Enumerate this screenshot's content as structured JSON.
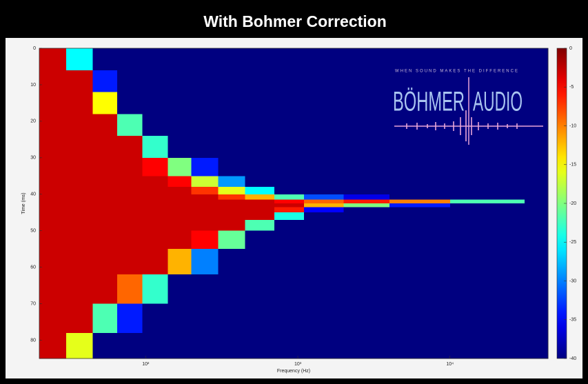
{
  "chart_data": {
    "type": "heatmap",
    "title": "With Bohmer Correction",
    "xlabel": "Frequency (Hz)",
    "ylabel": "Time (ms)",
    "xscale": "log",
    "xlim": [
      20,
      44100
    ],
    "ylim": [
      0,
      85
    ],
    "yreverse": true,
    "xticks": [
      {
        "value": 100,
        "label": "10²"
      },
      {
        "value": 1000,
        "label": "10³"
      },
      {
        "value": 10000,
        "label": "10⁴"
      }
    ],
    "yticks": [
      0,
      10,
      20,
      30,
      40,
      50,
      60,
      70,
      80
    ],
    "colormap": "jet",
    "clim": [
      -40,
      0
    ],
    "colorbar_ticks": [
      0,
      -5,
      -10,
      -15,
      -20,
      -25,
      -30,
      -35,
      -40
    ],
    "xbins": [
      20,
      30,
      45,
      65,
      95,
      140,
      200,
      300,
      450,
      700,
      1100,
      2000,
      4000,
      10000,
      31000,
      44100
    ],
    "ybins": [
      0,
      6,
      12,
      18,
      24,
      30,
      35,
      38,
      40,
      41.5,
      42.5,
      43.5,
      45,
      47,
      50,
      55,
      62,
      70,
      78,
      85
    ],
    "z": [
      [
        -3,
        -25,
        -40,
        -40,
        -40,
        -40,
        -40,
        -40,
        -40,
        -40,
        -40,
        -40,
        -40,
        -40,
        -40
      ],
      [
        -3,
        -3,
        -34,
        -40,
        -40,
        -40,
        -40,
        -40,
        -40,
        -40,
        -40,
        -40,
        -40,
        -40,
        -40
      ],
      [
        -3,
        -3,
        -15,
        -40,
        -40,
        -40,
        -40,
        -40,
        -40,
        -40,
        -40,
        -40,
        -40,
        -40,
        -40
      ],
      [
        -3,
        -3,
        -3,
        -22,
        -40,
        -40,
        -40,
        -40,
        -40,
        -40,
        -40,
        -40,
        -40,
        -40,
        -40
      ],
      [
        -3,
        -3,
        -3,
        -3,
        -23,
        -40,
        -40,
        -40,
        -40,
        -40,
        -40,
        -40,
        -40,
        -40,
        -40
      ],
      [
        -3,
        -3,
        -3,
        -3,
        -5,
        -20,
        -34,
        -40,
        -40,
        -40,
        -40,
        -40,
        -40,
        -40,
        -40
      ],
      [
        -3,
        -3,
        -3,
        -3,
        -3,
        -5,
        -17,
        -29,
        -40,
        -40,
        -40,
        -40,
        -40,
        -40,
        -40
      ],
      [
        -3,
        -3,
        -3,
        -3,
        -3,
        -3,
        -7,
        -16,
        -25,
        -40,
        -40,
        -40,
        -40,
        -40,
        -40
      ],
      [
        -3,
        -3,
        -3,
        -3,
        -3,
        -3,
        -3,
        -7,
        -12,
        -22,
        -32,
        -36,
        -40,
        -40,
        -40
      ],
      [
        -3,
        -3,
        -3,
        -3,
        -3,
        -3,
        -3,
        -3,
        -3,
        -5,
        -9,
        -6,
        -10,
        -22,
        -40
      ],
      [
        -3,
        -3,
        -3,
        -3,
        -3,
        -3,
        -3,
        -3,
        -3,
        -3,
        -12,
        -20,
        -34,
        -40,
        -40
      ],
      [
        -3,
        -3,
        -3,
        -3,
        -3,
        -3,
        -3,
        -3,
        -3,
        -6,
        -35,
        -40,
        -40,
        -40,
        -40
      ],
      [
        -3,
        -3,
        -3,
        -3,
        -3,
        -3,
        -3,
        -3,
        -3,
        -24,
        -40,
        -40,
        -40,
        -40,
        -40
      ],
      [
        -3,
        -3,
        -3,
        -3,
        -3,
        -3,
        -3,
        -3,
        -22,
        -40,
        -40,
        -40,
        -40,
        -40,
        -40
      ],
      [
        -3,
        -3,
        -3,
        -3,
        -3,
        -3,
        -5,
        -21,
        -40,
        -40,
        -40,
        -40,
        -40,
        -40,
        -40
      ],
      [
        -3,
        -3,
        -3,
        -3,
        -3,
        -12,
        -30,
        -40,
        -40,
        -40,
        -40,
        -40,
        -40,
        -40,
        -40
      ],
      [
        -3,
        -3,
        -3,
        -9,
        -23,
        -40,
        -40,
        -40,
        -40,
        -40,
        -40,
        -40,
        -40,
        -40,
        -40
      ],
      [
        -3,
        -3,
        -22,
        -34,
        -40,
        -40,
        -40,
        -40,
        -40,
        -40,
        -40,
        -40,
        -40,
        -40,
        -40
      ],
      [
        -3,
        -16,
        -40,
        -40,
        -40,
        -40,
        -40,
        -40,
        -40,
        -40,
        -40,
        -40,
        -40,
        -40,
        -40
      ]
    ]
  },
  "logo": {
    "tagline": "WHEN SOUND MAKES THE DIFFERENCE",
    "word1": "BÖHMER",
    "word2": "AUDIO"
  }
}
